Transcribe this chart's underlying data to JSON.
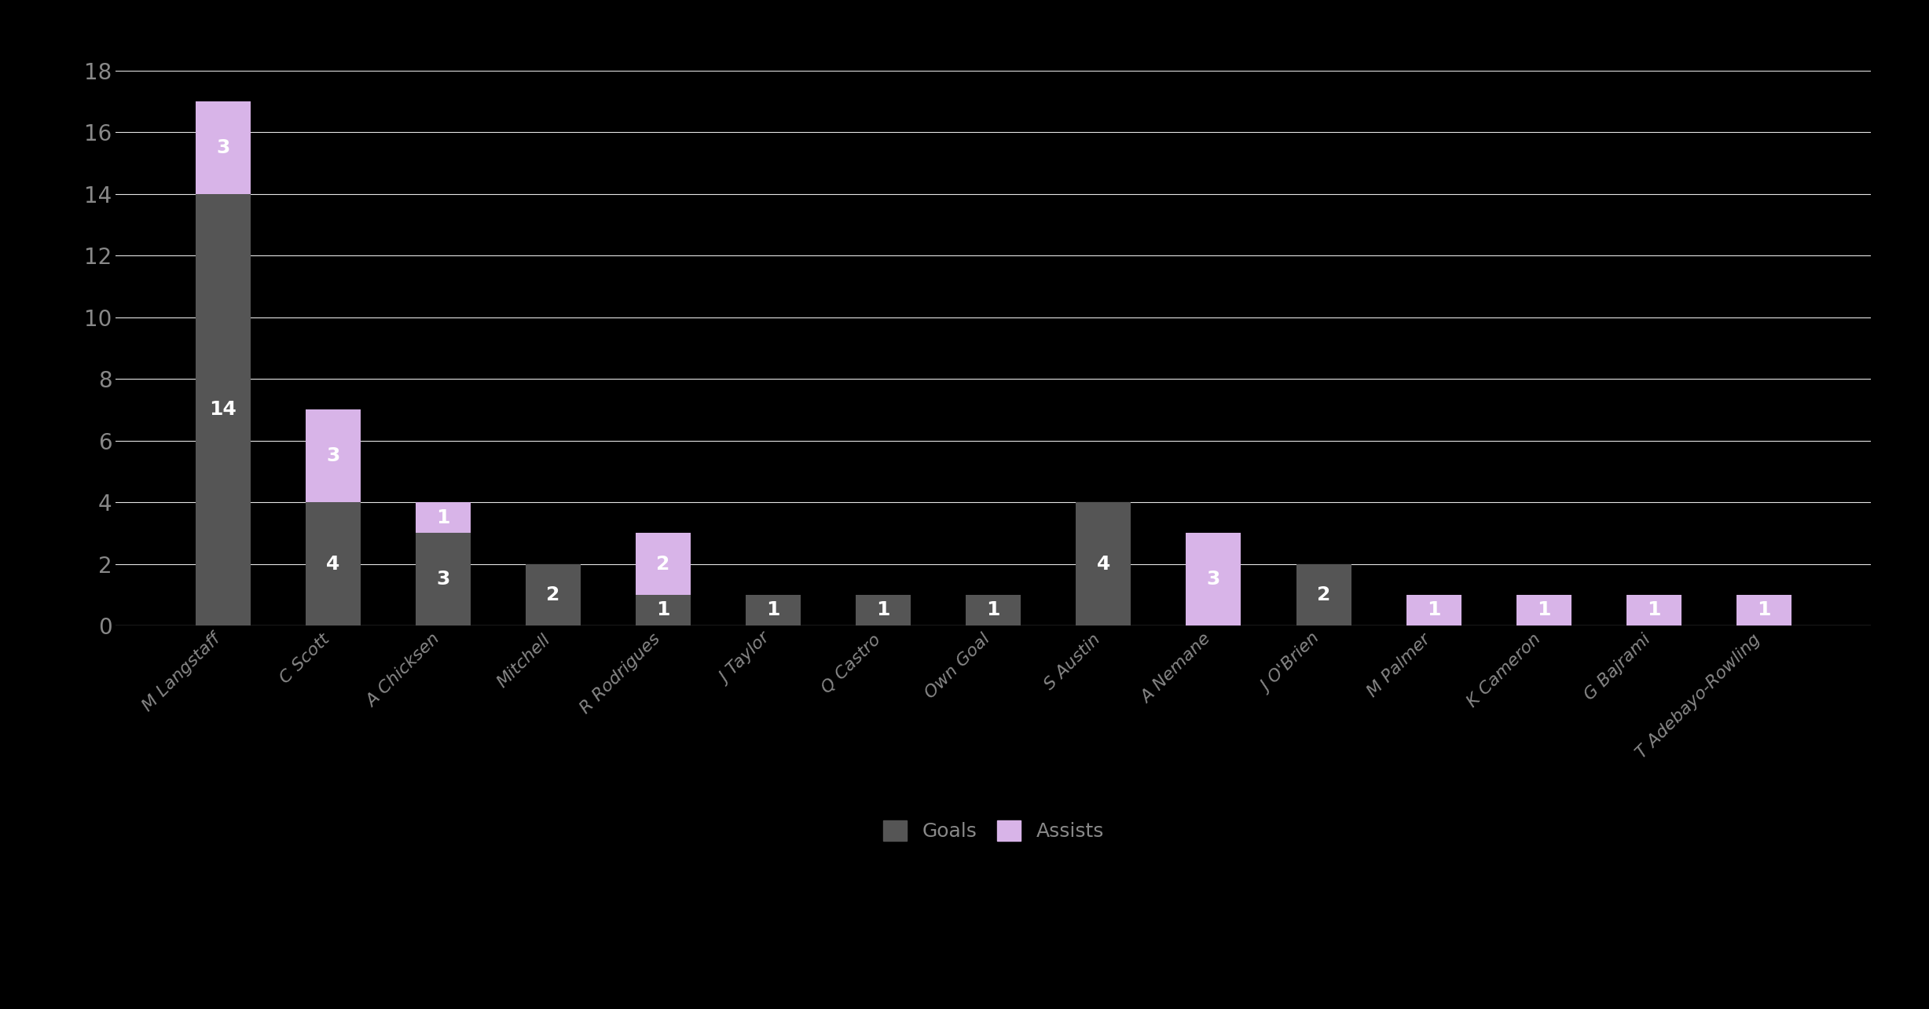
{
  "players": [
    "M Langstaff",
    "C Scott",
    "A Chicksen",
    "Mitchell",
    "R Rodrigues",
    "J Taylor",
    "Q Castro",
    "Own Goal",
    "S Austin",
    "A Nemane",
    "J O'Brien",
    "M Palmer",
    "K Cameron",
    "G Bajrami",
    "T Adebayo-Rowling"
  ],
  "goals": [
    14,
    4,
    3,
    2,
    1,
    1,
    1,
    1,
    4,
    0,
    2,
    0,
    0,
    0,
    0
  ],
  "assists": [
    3,
    3,
    1,
    0,
    2,
    0,
    0,
    0,
    0,
    3,
    0,
    1,
    1,
    1,
    1
  ],
  "goal_color": "#555555",
  "assist_color": "#d8b4e8",
  "background_color": "#000000",
  "text_color": "#ffffff",
  "axis_label_color": "#888888",
  "grid_color": "#ffffff",
  "bar_width": 0.5,
  "ylim": [
    0,
    18
  ],
  "yticks": [
    0,
    2,
    4,
    6,
    8,
    10,
    12,
    14,
    16,
    18
  ],
  "legend_labels": [
    "Goals",
    "Assists"
  ],
  "figsize": [
    24.55,
    12.84
  ],
  "dpi": 100
}
